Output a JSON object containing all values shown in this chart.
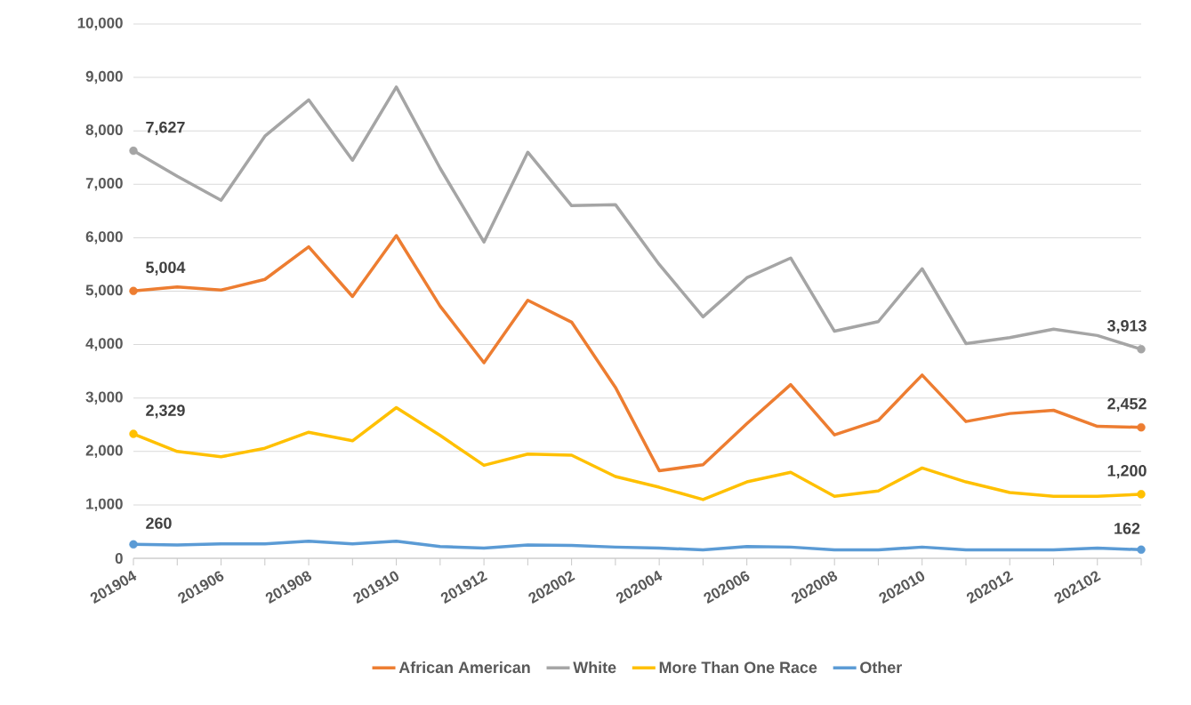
{
  "chart_data": {
    "type": "line",
    "categories": [
      "201904",
      null,
      "201906",
      null,
      "201908",
      null,
      "201910",
      null,
      "201912",
      null,
      "202002",
      null,
      "202004",
      null,
      "202006",
      null,
      "202008",
      null,
      "202010",
      null,
      "202012",
      null,
      "202102",
      null
    ],
    "series": [
      {
        "name": "African American",
        "color": "#ed7d31",
        "values": [
          5004,
          5080,
          5020,
          5220,
          5830,
          4900,
          6040,
          4720,
          3660,
          4830,
          4420,
          3200,
          1640,
          1750,
          2520,
          3250,
          2310,
          2580,
          3430,
          2560,
          2710,
          2770,
          2470,
          2452
        ],
        "value_labels": [
          "5,004",
          null,
          null,
          null,
          null,
          null,
          null,
          null,
          null,
          null,
          null,
          null,
          null,
          null,
          null,
          null,
          null,
          null,
          null,
          null,
          null,
          null,
          null,
          "2,452"
        ]
      },
      {
        "name": "White",
        "color": "#a5a5a5",
        "values": [
          7627,
          7150,
          6700,
          7900,
          8580,
          7450,
          8820,
          7300,
          5920,
          7600,
          6600,
          6620,
          5500,
          4520,
          5250,
          5620,
          4250,
          4430,
          5420,
          4020,
          4130,
          4290,
          4170,
          3913
        ],
        "value_labels": [
          "7,627",
          null,
          null,
          null,
          null,
          null,
          null,
          null,
          null,
          null,
          null,
          null,
          null,
          null,
          null,
          null,
          null,
          null,
          null,
          null,
          null,
          null,
          null,
          "3,913"
        ]
      },
      {
        "name": "More Than One Race",
        "color": "#ffc000",
        "values": [
          2329,
          2000,
          1900,
          2060,
          2360,
          2200,
          2820,
          2300,
          1740,
          1950,
          1930,
          1530,
          1330,
          1100,
          1430,
          1610,
          1160,
          1260,
          1690,
          1430,
          1230,
          1160,
          1160,
          1200
        ],
        "value_labels": [
          "2,329",
          null,
          null,
          null,
          null,
          null,
          null,
          null,
          null,
          null,
          null,
          null,
          null,
          null,
          null,
          null,
          null,
          null,
          null,
          null,
          null,
          null,
          null,
          "1,200"
        ]
      },
      {
        "name": "Other",
        "color": "#5b9bd5",
        "values": [
          260,
          250,
          270,
          270,
          320,
          270,
          320,
          220,
          190,
          250,
          240,
          210,
          190,
          160,
          220,
          210,
          160,
          160,
          210,
          160,
          160,
          160,
          190,
          162
        ],
        "value_labels": [
          "260",
          null,
          null,
          null,
          null,
          null,
          null,
          null,
          null,
          null,
          null,
          null,
          null,
          null,
          null,
          null,
          null,
          null,
          null,
          null,
          null,
          null,
          null,
          "162"
        ]
      }
    ],
    "ylim": [
      0,
      10000
    ],
    "yticks": [
      0,
      {
        "value": 1000,
        "label": "1,000"
      },
      {
        "value": 2000,
        "label": "2,000"
      },
      {
        "value": 3000,
        "label": "3,000"
      },
      {
        "value": 4000,
        "label": "4,000"
      },
      {
        "value": 5000,
        "label": "5,000"
      },
      {
        "value": 6000,
        "label": "6,000"
      },
      {
        "value": 7000,
        "label": "7,000"
      },
      {
        "value": 8000,
        "label": "8,000"
      },
      {
        "value": 9000,
        "label": "9,000"
      },
      {
        "value": 10000,
        "label": "10,000"
      }
    ],
    "grid": "y",
    "legend": "bottom",
    "line_style": "solid"
  }
}
